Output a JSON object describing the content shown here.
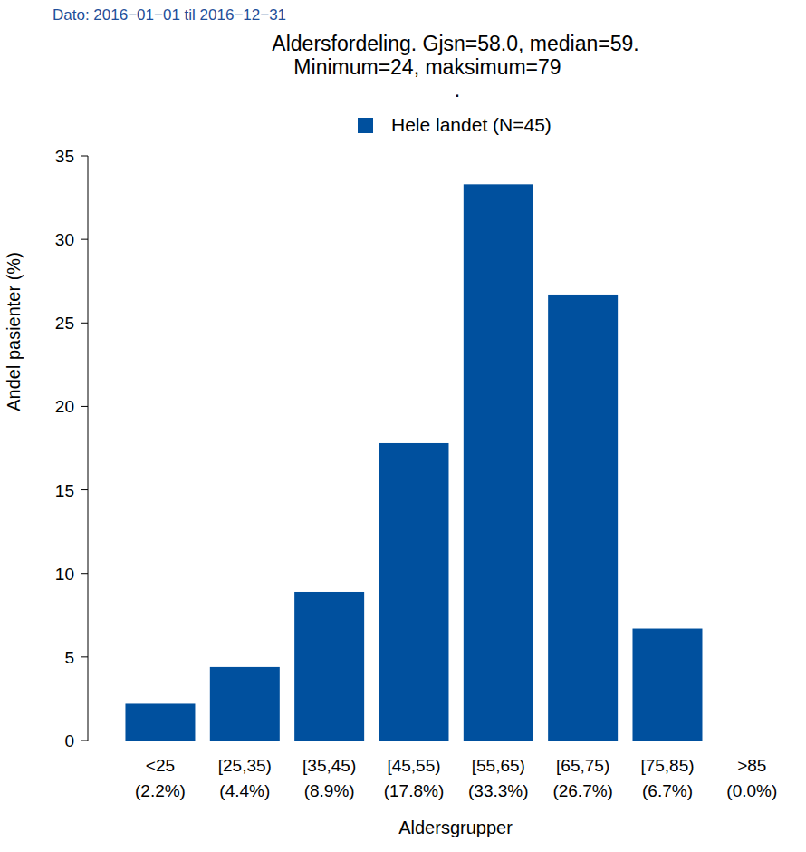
{
  "chart_data": {
    "type": "bar",
    "title": "Aldersfordeling. Gjsn=58.0, median=59.",
    "subtitle": "Minimum=24, maksimum=79",
    "annotations": [
      "Dato: 2016−01−01 til 2016−12−31",
      "."
    ],
    "x_label": "Aldersgrupper",
    "y_label": "Andel pasienter (%)",
    "categories": [
      "<25",
      "[25,35)",
      "[35,45)",
      "[45,55)",
      "[55,65)",
      "[65,75)",
      "[75,85)",
      ">85"
    ],
    "series": [
      {
        "name": "Hele landet (N=45)",
        "color": "#00509e",
        "values": [
          2.2,
          4.4,
          8.9,
          17.8,
          33.3,
          26.7,
          6.7,
          0.0
        ],
        "value_labels": [
          "(2.2%)",
          "(4.4%)",
          "(8.9%)",
          "(17.8%)",
          "(33.3%)",
          "(26.7%)",
          "(6.7%)",
          "(0.0%)"
        ]
      }
    ],
    "ylim": [
      0,
      35
    ],
    "yticks": [
      0,
      5,
      10,
      15,
      20,
      25,
      30,
      35
    ],
    "grid": false,
    "legend": "top"
  }
}
